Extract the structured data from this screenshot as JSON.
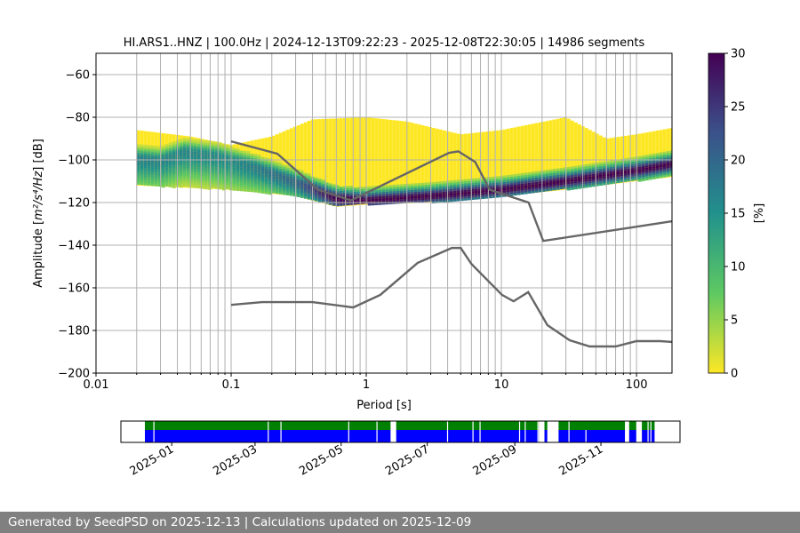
{
  "chart_data": {
    "type": "heatmap",
    "title": "HI.ARS1..HNZ | 100.0Hz | 2024-12-13T09:22:23 - 2025-12-08T22:30:05 | 14986 segments",
    "xlabel": "Period [s]",
    "ylabel_prefix": "Amplitude [",
    "ylabel_units": "m²/s⁴/Hz",
    "ylabel_suffix": "] [dB]",
    "xscale": "log",
    "xlim": [
      0.01,
      183
    ],
    "ylim": [
      -200,
      -50
    ],
    "grid": true,
    "x_ticks": [
      {
        "v": 0.01,
        "label": "0.01"
      },
      {
        "v": 0.1,
        "label": "0.1"
      },
      {
        "v": 1,
        "label": "1"
      },
      {
        "v": 10,
        "label": "10"
      },
      {
        "v": 100,
        "label": "100"
      }
    ],
    "y_ticks": [
      {
        "v": -60,
        "label": "−60"
      },
      {
        "v": -80,
        "label": "−80"
      },
      {
        "v": -100,
        "label": "−100"
      },
      {
        "v": -120,
        "label": "−120"
      },
      {
        "v": -140,
        "label": "−140"
      },
      {
        "v": -160,
        "label": "−160"
      },
      {
        "v": -180,
        "label": "−180"
      },
      {
        "v": -200,
        "label": "−200"
      }
    ],
    "colorbar": {
      "label": "[%]",
      "range": [
        0,
        30
      ],
      "ticks": [
        {
          "v": 0,
          "label": "0"
        },
        {
          "v": 5,
          "label": "5"
        },
        {
          "v": 10,
          "label": "10"
        },
        {
          "v": 15,
          "label": "15"
        },
        {
          "v": 20,
          "label": "20"
        },
        {
          "v": 25,
          "label": "25"
        },
        {
          "v": 30,
          "label": "30"
        }
      ],
      "colormap": [
        "#fde725",
        "#5ec962",
        "#21918c",
        "#3b528b",
        "#440154"
      ]
    },
    "psd_distribution": {
      "period_range": [
        0.02,
        183
      ],
      "mode_curve": [
        [
          0.02,
          -99
        ],
        [
          0.03,
          -100
        ],
        [
          0.045,
          -96
        ],
        [
          0.08,
          -98
        ],
        [
          0.15,
          -103
        ],
        [
          0.3,
          -110
        ],
        [
          0.6,
          -118
        ],
        [
          1,
          -119
        ],
        [
          3,
          -117
        ],
        [
          10,
          -114
        ],
        [
          30,
          -110
        ],
        [
          100,
          -105
        ],
        [
          183,
          -102
        ]
      ],
      "upper_extent": [
        [
          0.02,
          -86
        ],
        [
          0.05,
          -89
        ],
        [
          0.1,
          -93
        ],
        [
          0.2,
          -89
        ],
        [
          0.4,
          -81
        ],
        [
          1,
          -80
        ],
        [
          2,
          -82
        ],
        [
          5,
          -88
        ],
        [
          10,
          -86
        ],
        [
          30,
          -80
        ],
        [
          60,
          -90
        ],
        [
          100,
          -88
        ],
        [
          183,
          -85
        ]
      ],
      "lower_extent": [
        [
          0.02,
          -112
        ],
        [
          0.1,
          -114
        ],
        [
          0.3,
          -117
        ],
        [
          0.6,
          -122
        ],
        [
          1,
          -121
        ],
        [
          3,
          -120
        ],
        [
          10,
          -117
        ],
        [
          30,
          -114
        ],
        [
          100,
          -110
        ],
        [
          183,
          -108
        ]
      ],
      "peak_pct": [
        [
          0.02,
          17
        ],
        [
          0.1,
          16
        ],
        [
          0.3,
          20
        ],
        [
          0.6,
          30
        ],
        [
          183,
          30
        ]
      ],
      "spread_db": [
        [
          0.02,
          9
        ],
        [
          0.1,
          9
        ],
        [
          0.4,
          5
        ],
        [
          1,
          3
        ],
        [
          183,
          3
        ]
      ]
    },
    "noise_models": [
      {
        "name": "high-noise-model",
        "color": "#666666",
        "points": [
          [
            0.1,
            -91.3
          ],
          [
            0.22,
            -97.1
          ],
          [
            0.44,
            -114
          ],
          [
            0.77,
            -119
          ],
          [
            4.1,
            -96.7
          ],
          [
            4.8,
            -96
          ],
          [
            6.4,
            -101
          ],
          [
            8.2,
            -114
          ],
          [
            15.9,
            -120
          ],
          [
            20.4,
            -138
          ],
          [
            183,
            -128.8
          ]
        ]
      },
      {
        "name": "low-noise-model",
        "color": "#666666",
        "points": [
          [
            0.1,
            -168
          ],
          [
            0.17,
            -166.7
          ],
          [
            0.4,
            -166.7
          ],
          [
            0.8,
            -169.2
          ],
          [
            1.27,
            -163.3
          ],
          [
            2.4,
            -148.3
          ],
          [
            4.3,
            -141.3
          ],
          [
            5.0,
            -141.3
          ],
          [
            6.0,
            -148.8
          ],
          [
            10.1,
            -163.3
          ],
          [
            12.3,
            -166.3
          ],
          [
            15.8,
            -162
          ],
          [
            21.9,
            -177.5
          ],
          [
            32,
            -184.6
          ],
          [
            45,
            -187.5
          ],
          [
            70,
            -187.5
          ],
          [
            100,
            -185
          ],
          [
            150,
            -185
          ],
          [
            183,
            -185.4
          ]
        ]
      }
    ],
    "coverage": {
      "axis_start": "2024-11-26",
      "axis_end": "2025-12-27",
      "data_start": "2024-12-13",
      "data_end": "2025-12-08",
      "colors": {
        "top": "#008000",
        "bottom": "#0000ff"
      },
      "tick_labels": [
        "2025-01",
        "2025-03",
        "2025-05",
        "2025-07",
        "2025-09",
        "2025-11"
      ],
      "tick_dates": [
        "2025-01-01",
        "2025-03-01",
        "2025-05-01",
        "2025-07-01",
        "2025-09-01",
        "2025-11-01"
      ],
      "gaps_days_from_start": [
        [
          6,
          6.4
        ],
        [
          87,
          87.4
        ],
        [
          96,
          96.5
        ],
        [
          144,
          144.6
        ],
        [
          164,
          164.4
        ],
        [
          174,
          178
        ],
        [
          214,
          214.4
        ],
        [
          232,
          232.4
        ],
        [
          237,
          237.5
        ],
        [
          265,
          265.4
        ],
        [
          269,
          269.4
        ],
        [
          278,
          278.4
        ],
        [
          279,
          283
        ],
        [
          285,
          293
        ],
        [
          300,
          300.4
        ],
        [
          340,
          343
        ],
        [
          348,
          352
        ],
        [
          356,
          356.6
        ],
        [
          358,
          358.5
        ]
      ],
      "bottom_only_gaps_days": [
        [
          312,
          312.4
        ]
      ]
    }
  },
  "footer": "Generated by SeedPSD on 2025-12-13 | Calculations updated on 2025-12-09"
}
